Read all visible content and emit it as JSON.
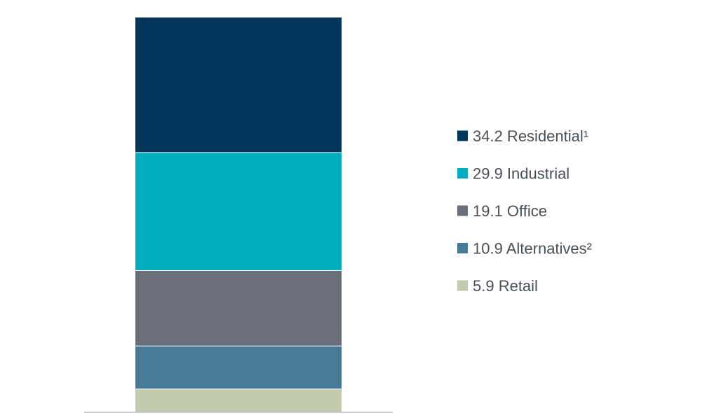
{
  "chart_data": {
    "type": "bar",
    "stacked": true,
    "series": [
      {
        "name": "Residential¹",
        "value": 34.2,
        "label": "34.2 Residential¹",
        "color": "#02355a"
      },
      {
        "name": "Industrial",
        "value": 29.9,
        "label": "29.9 Industrial",
        "color": "#00acbf"
      },
      {
        "name": "Office",
        "value": 19.1,
        "label": "19.1 Office",
        "color": "#6a6f7a"
      },
      {
        "name": "Alternatives²",
        "value": 10.9,
        "label": "10.9 Alternatives²",
        "color": "#477a97"
      },
      {
        "name": "Retail",
        "value": 5.9,
        "label": "5.9 Retail",
        "color": "#c3cbad"
      }
    ],
    "total": 100,
    "legend_position": "right",
    "grid": false,
    "baseline_color": "#bfc3c8"
  }
}
